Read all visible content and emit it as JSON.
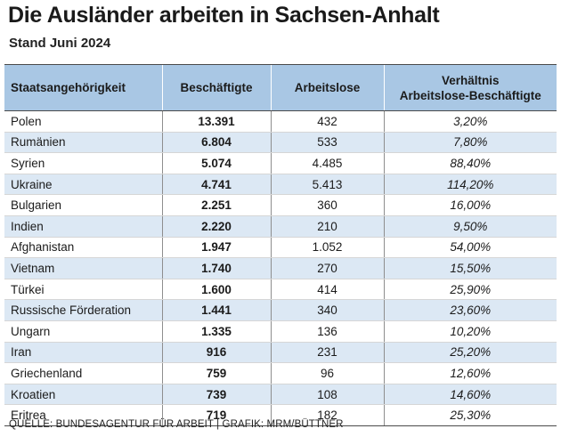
{
  "title": "Die Ausländer arbeiten in Sachsen-Anhalt",
  "subtitle": "Stand Juni 2024",
  "source": "QUELLE: BUNDESAGENTUR FÜR ARBEIT | GRAFIK: MRM/BÜTTNER",
  "colors": {
    "header_background": "#a9c7e4",
    "stripe_background": "#dce8f4"
  },
  "chart_data": {
    "type": "table",
    "title": "Die Ausländer arbeiten in Sachsen-Anhalt",
    "subtitle": "Stand Juni 2024",
    "columns": [
      "Staatsangehörigkeit",
      "Beschäftigte",
      "Arbeitslose",
      "Verhältnis Arbeitslose-Beschäftigte"
    ],
    "rows": [
      [
        "Polen",
        "13.391",
        "432",
        "3,20%"
      ],
      [
        "Rumänien",
        "6.804",
        "533",
        "7,80%"
      ],
      [
        "Syrien",
        "5.074",
        "4.485",
        "88,40%"
      ],
      [
        "Ukraine",
        "4.741",
        "5.413",
        "114,20%"
      ],
      [
        "Bulgarien",
        "2.251",
        "360",
        "16,00%"
      ],
      [
        "Indien",
        "2.220",
        "210",
        "9,50%"
      ],
      [
        "Afghanistan",
        "1.947",
        "1.052",
        "54,00%"
      ],
      [
        "Vietnam",
        "1.740",
        "270",
        "15,50%"
      ],
      [
        "Türkei",
        "1.600",
        "414",
        "25,90%"
      ],
      [
        "Russische Förderation",
        "1.441",
        "340",
        "23,60%"
      ],
      [
        "Ungarn",
        "1.335",
        "136",
        "10,20%"
      ],
      [
        "Iran",
        "916",
        "231",
        "25,20%"
      ],
      [
        "Griechenland",
        "759",
        "96",
        "12,60%"
      ],
      [
        "Kroatien",
        "739",
        "108",
        "14,60%"
      ],
      [
        "Eritrea",
        "719",
        "182",
        "25,30%"
      ]
    ]
  }
}
